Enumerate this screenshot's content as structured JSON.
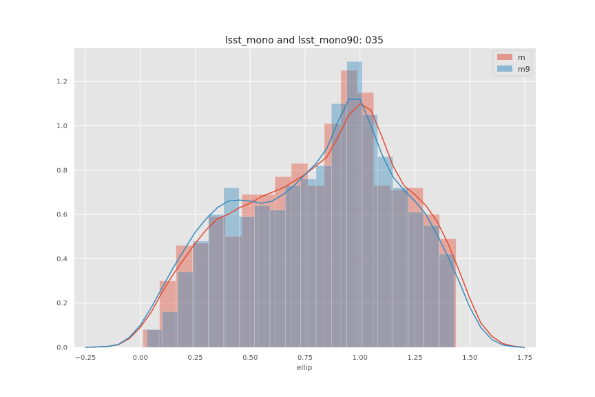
{
  "chart_data": {
    "type": "histogram",
    "title": "lsst_mono and lsst_mono90: 035",
    "xlabel": "ellip",
    "ylabel": "",
    "xlim": [
      -0.3,
      1.8
    ],
    "ylim": [
      0,
      1.35
    ],
    "xticks": [
      -0.25,
      0.0,
      0.25,
      0.5,
      0.75,
      1.0,
      1.25,
      1.5,
      1.75
    ],
    "xtick_labels": [
      "−0.25",
      "0.00",
      "0.25",
      "0.50",
      "0.75",
      "1.00",
      "1.25",
      "1.50",
      "1.75"
    ],
    "yticks": [
      0.0,
      0.2,
      0.4,
      0.6,
      0.8,
      1.0,
      1.2
    ],
    "ytick_labels": [
      "0.0",
      "0.2",
      "0.4",
      "0.6",
      "0.8",
      "1.0",
      "1.2"
    ],
    "grid": true,
    "legend_position": "top-right",
    "series": [
      {
        "name": "m",
        "color": "#E24A33",
        "bin_edges": [
          0.0125,
          0.0875,
          0.1625,
          0.2375,
          0.3125,
          0.3875,
          0.4625,
          0.5375,
          0.6125,
          0.6875,
          0.7625,
          0.8375,
          0.9125,
          0.9875,
          1.0625,
          1.1375,
          1.2125,
          1.2875,
          1.3625,
          1.4375,
          1.5125
        ],
        "heights": [
          0.08,
          0.3,
          0.46,
          0.47,
          0.59,
          0.5,
          0.69,
          0.69,
          0.77,
          0.83,
          0.73,
          1.01,
          1.25,
          1.15,
          0.73,
          0.71,
          0.72,
          0.6,
          0.49,
          0
        ],
        "kde": {
          "x": [
            -0.25,
            -0.15,
            -0.1,
            -0.05,
            0.0,
            0.05,
            0.1,
            0.15,
            0.2,
            0.25,
            0.3,
            0.35,
            0.4,
            0.45,
            0.5,
            0.55,
            0.6,
            0.65,
            0.7,
            0.75,
            0.8,
            0.85,
            0.9,
            0.95,
            1.0,
            1.05,
            1.1,
            1.15,
            1.2,
            1.25,
            1.3,
            1.35,
            1.4,
            1.45,
            1.5,
            1.55,
            1.6,
            1.65,
            1.7,
            1.75
          ],
          "y": [
            0.0,
            0.004,
            0.012,
            0.04,
            0.09,
            0.16,
            0.25,
            0.33,
            0.4,
            0.47,
            0.53,
            0.58,
            0.6,
            0.63,
            0.65,
            0.68,
            0.7,
            0.72,
            0.75,
            0.78,
            0.82,
            0.86,
            0.95,
            1.05,
            1.1,
            1.07,
            0.95,
            0.82,
            0.73,
            0.69,
            0.64,
            0.57,
            0.47,
            0.35,
            0.22,
            0.11,
            0.05,
            0.017,
            0.005,
            0.0
          ]
        }
      },
      {
        "name": "m9",
        "color": "#348ABD",
        "bin_edges": [
          0.03,
          0.1,
          0.17,
          0.24,
          0.31,
          0.38,
          0.45,
          0.52,
          0.59,
          0.66,
          0.73,
          0.8,
          0.87,
          0.94,
          1.01,
          1.08,
          1.15,
          1.22,
          1.29,
          1.36,
          1.43,
          1.5
        ],
        "heights": [
          0.08,
          0.16,
          0.34,
          0.48,
          0.6,
          0.72,
          0.59,
          0.64,
          0.62,
          0.73,
          0.76,
          0.82,
          1.1,
          1.29,
          1.05,
          0.86,
          0.72,
          0.61,
          0.55,
          0.42,
          0
        ],
        "kde": {
          "x": [
            -0.25,
            -0.15,
            -0.1,
            -0.05,
            0.0,
            0.05,
            0.1,
            0.15,
            0.2,
            0.25,
            0.3,
            0.35,
            0.4,
            0.45,
            0.5,
            0.55,
            0.6,
            0.65,
            0.7,
            0.75,
            0.8,
            0.85,
            0.9,
            0.95,
            1.0,
            1.05,
            1.1,
            1.15,
            1.2,
            1.25,
            1.3,
            1.35,
            1.4,
            1.45,
            1.5,
            1.55,
            1.6,
            1.65,
            1.7,
            1.75
          ],
          "y": [
            0.0,
            0.004,
            0.013,
            0.045,
            0.1,
            0.18,
            0.27,
            0.36,
            0.44,
            0.52,
            0.58,
            0.63,
            0.66,
            0.665,
            0.66,
            0.65,
            0.66,
            0.69,
            0.73,
            0.78,
            0.83,
            0.9,
            1.02,
            1.12,
            1.12,
            1.0,
            0.87,
            0.77,
            0.71,
            0.66,
            0.6,
            0.51,
            0.41,
            0.3,
            0.18,
            0.09,
            0.035,
            0.011,
            0.003,
            0.0
          ]
        }
      }
    ]
  }
}
